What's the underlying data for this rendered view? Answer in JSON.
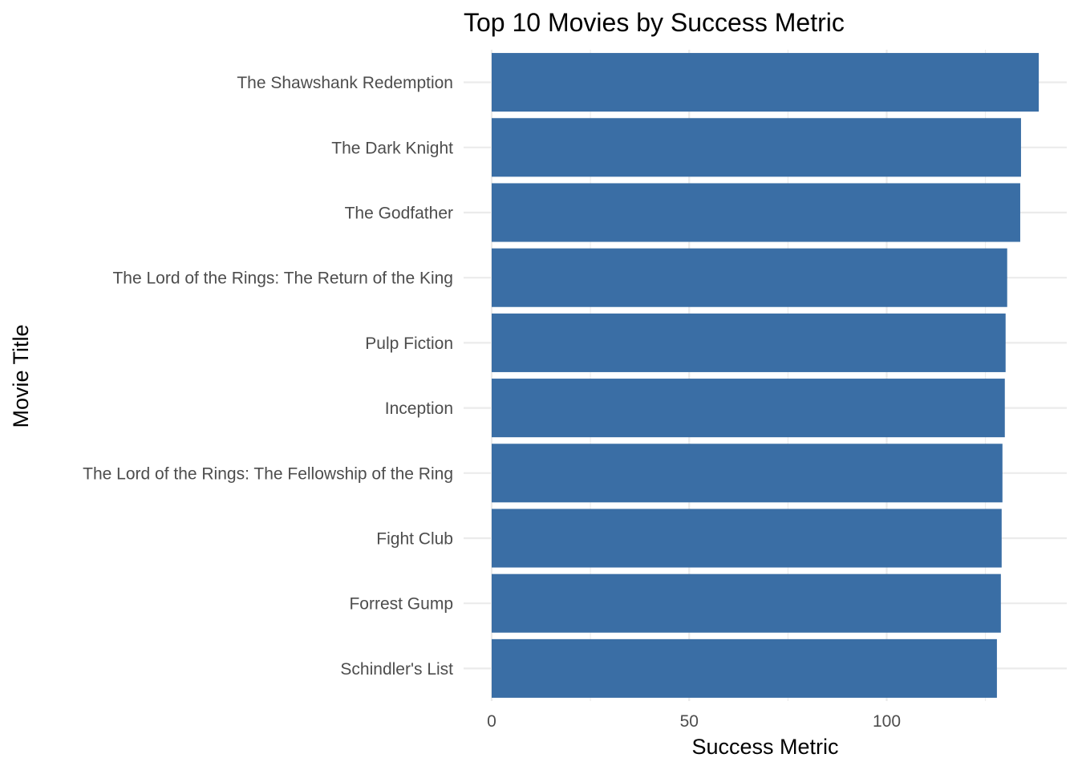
{
  "chart_data": {
    "type": "bar",
    "orientation": "horizontal",
    "title": "Top 10 Movies by Success Metric",
    "xlabel": "Success Metric",
    "ylabel": "Movie Title",
    "categories": [
      "The Shawshank Redemption",
      "The Dark Knight",
      "The Godfather",
      "The Lord of the Rings: The Return of the King",
      "Pulp Fiction",
      "Inception",
      "The Lord of the Rings: The Fellowship of the Ring",
      "Fight Club",
      "Forrest Gump",
      "Schindler's List"
    ],
    "values": [
      138.5,
      134.0,
      133.8,
      130.5,
      130.1,
      129.9,
      129.3,
      129.1,
      128.9,
      127.9
    ],
    "xlim": [
      0,
      145
    ],
    "xticks": [
      0,
      50,
      100
    ],
    "xtick_labels": [
      "0",
      "50",
      "100"
    ],
    "grid": true,
    "bar_color": "#3a6ea5",
    "grid_color": "#ebebeb"
  }
}
